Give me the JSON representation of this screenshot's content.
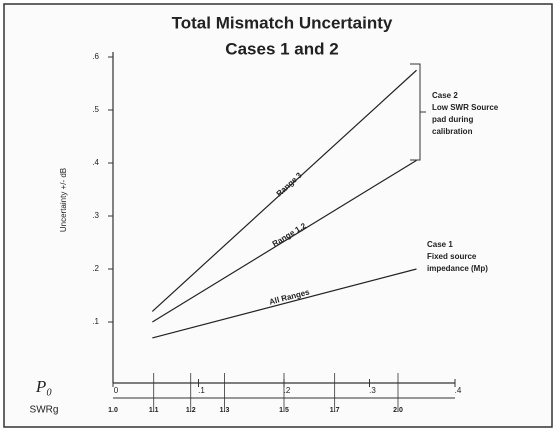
{
  "chart_data": {
    "type": "line",
    "title": "Total Mismatch Uncertainty",
    "subtitle": "Cases 1 and 2",
    "y_label": "Uncertainty +/- dB",
    "x_label": "P₀",
    "x2_label": "SWRg",
    "x": [
      0.046,
      0.355
    ],
    "series": [
      {
        "name": "Range 3",
        "color": "#222222",
        "values": [
          0.12,
          0.575
        ]
      },
      {
        "name": "Range 1,2",
        "color": "#222222",
        "values": [
          0.1,
          0.405
        ]
      },
      {
        "name": "All Ranges",
        "color": "#222222",
        "values": [
          0.07,
          0.2
        ]
      }
    ],
    "xlim": [
      0,
      0.4
    ],
    "xticks": [
      0,
      {
        "value": 0.1,
        "label": ".1"
      },
      {
        "value": 0.2,
        "label": ".2"
      },
      {
        "value": 0.3,
        "label": ".3"
      },
      {
        "value": 0.4,
        "label": ".4"
      }
    ],
    "swr_ticks": [
      {
        "value": 1,
        "label": "1.0"
      },
      1.1,
      1.2,
      1.3,
      1.5,
      1.7,
      {
        "value": 2,
        "label": "2.0"
      }
    ],
    "ylim": [
      0,
      0.6
    ],
    "yticks": [
      {
        "value": 0.1,
        "label": ".1"
      },
      {
        "value": 0.2,
        "label": ".2"
      },
      {
        "value": 0.3,
        "label": ".3"
      },
      {
        "value": 0.4,
        "label": ".4"
      },
      {
        "value": 0.5,
        "label": ".5"
      },
      {
        "value": 0.6,
        "label": ".6"
      }
    ],
    "annotations": [
      {
        "lines": [
          "Case 2",
          "Low SWR Source",
          "pad during",
          "calibration"
        ]
      },
      {
        "lines": [
          "Case 1",
          "Fixed source",
          "impedance (Mp)"
        ]
      }
    ]
  }
}
